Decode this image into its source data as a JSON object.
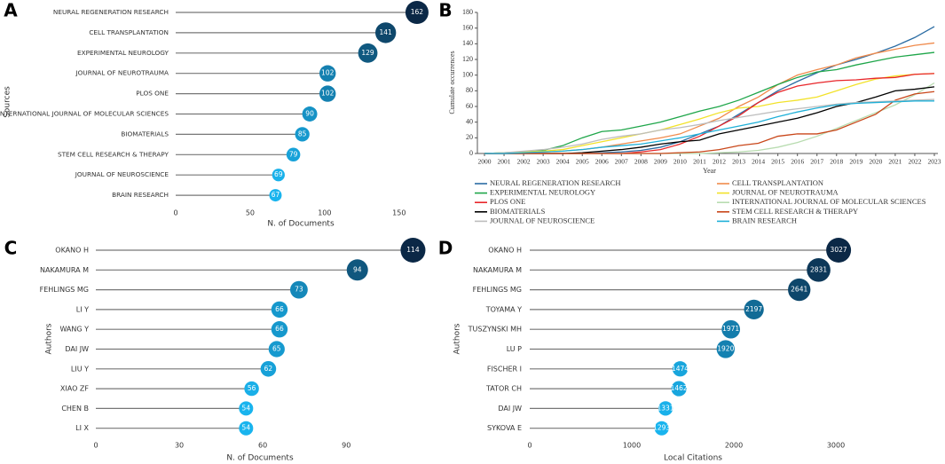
{
  "chart_data": [
    {
      "panel": "A",
      "type": "lollipop",
      "xlabel": "N. of Documents",
      "ylabel": "Sources",
      "categories": [
        "NEURAL REGENERATION RESEARCH",
        "CELL TRANSPLANTATION",
        "EXPERIMENTAL NEUROLOGY",
        "JOURNAL OF NEUROTRAUMA",
        "PLOS ONE",
        "INTERNATIONAL JOURNAL OF MOLECULAR SCIENCES",
        "BIOMATERIALS",
        "STEM CELL RESEARCH & THERAPY",
        "JOURNAL OF NEUROSCIENCE",
        "BRAIN RESEARCH"
      ],
      "values": [
        162,
        141,
        129,
        102,
        102,
        90,
        85,
        79,
        69,
        67
      ],
      "xlim": [
        0,
        168
      ],
      "xticks": [
        0,
        50,
        100,
        150
      ],
      "color_scale": [
        "#19b4ee",
        "#0b2846"
      ]
    },
    {
      "panel": "B",
      "type": "line",
      "xlabel": "Year",
      "ylabel": "Cumulate occurrences",
      "x": [
        2000,
        2001,
        2002,
        2003,
        2004,
        2005,
        2006,
        2007,
        2008,
        2009,
        2010,
        2011,
        2012,
        2013,
        2014,
        2015,
        2016,
        2017,
        2018,
        2019,
        2020,
        2021,
        2022,
        2023
      ],
      "xlim": [
        2000,
        2023
      ],
      "ylim": [
        0,
        180
      ],
      "yticks": [
        0,
        20,
        40,
        60,
        80,
        100,
        120,
        140,
        160,
        180
      ],
      "series": [
        {
          "name": "NEURAL REGENERATION RESEARCH",
          "color": "#2b6ca3",
          "values": [
            0,
            0,
            0,
            0,
            0,
            0,
            1,
            2,
            4,
            8,
            15,
            25,
            35,
            50,
            65,
            80,
            92,
            103,
            113,
            120,
            128,
            137,
            148,
            162
          ]
        },
        {
          "name": "CELL TRANSPLANTATION",
          "color": "#f08a4b",
          "values": [
            0,
            0,
            1,
            2,
            3,
            5,
            8,
            12,
            16,
            20,
            25,
            35,
            45,
            60,
            72,
            88,
            100,
            107,
            113,
            122,
            128,
            133,
            138,
            141
          ]
        },
        {
          "name": "EXPERIMENTAL NEUROLOGY",
          "color": "#1fa64a",
          "values": [
            0,
            1,
            2,
            4,
            10,
            20,
            28,
            30,
            35,
            40,
            47,
            54,
            60,
            68,
            78,
            88,
            97,
            104,
            107,
            113,
            118,
            123,
            126,
            129
          ]
        },
        {
          "name": "JOURNAL OF NEUROTRAUMA",
          "color": "#f2e22a",
          "values": [
            0,
            1,
            2,
            3,
            5,
            10,
            15,
            20,
            25,
            30,
            37,
            44,
            52,
            58,
            60,
            65,
            68,
            72,
            80,
            88,
            95,
            99,
            101,
            102
          ]
        },
        {
          "name": "PLOS ONE",
          "color": "#e8262a",
          "values": [
            0,
            0,
            0,
            0,
            0,
            0,
            0,
            0,
            2,
            5,
            12,
            22,
            35,
            48,
            65,
            78,
            86,
            90,
            93,
            94,
            96,
            97,
            101,
            102
          ]
        },
        {
          "name": "INTERNATIONAL JOURNAL OF MOLECULAR SCIENCES",
          "color": "#b8dcb0",
          "values": [
            0,
            0,
            0,
            0,
            0,
            0,
            0,
            0,
            0,
            0,
            0,
            0,
            1,
            2,
            4,
            8,
            14,
            22,
            32,
            42,
            52,
            62,
            75,
            90
          ]
        },
        {
          "name": "BIOMATERIALS",
          "color": "#000000",
          "values": [
            0,
            0,
            0,
            0,
            0,
            1,
            3,
            5,
            8,
            12,
            15,
            17,
            25,
            30,
            35,
            40,
            45,
            52,
            60,
            65,
            72,
            80,
            82,
            85
          ]
        },
        {
          "name": "STEM CELL RESEARCH & THERAPY",
          "color": "#c9471a",
          "values": [
            0,
            0,
            0,
            0,
            0,
            0,
            0,
            0,
            0,
            0,
            1,
            2,
            5,
            10,
            13,
            22,
            25,
            25,
            30,
            40,
            50,
            68,
            76,
            79
          ]
        },
        {
          "name": "JOURNAL OF NEUROSCIENCE",
          "color": "#bdbdbd",
          "values": [
            0,
            1,
            3,
            5,
            8,
            12,
            18,
            22,
            25,
            30,
            33,
            37,
            42,
            46,
            50,
            54,
            57,
            60,
            63,
            65,
            66,
            67,
            68,
            69
          ]
        },
        {
          "name": "BRAIN RESEARCH",
          "color": "#1fb0d8",
          "values": [
            0,
            0,
            1,
            2,
            3,
            5,
            8,
            10,
            12,
            16,
            20,
            25,
            30,
            35,
            40,
            47,
            53,
            58,
            62,
            64,
            65,
            66,
            67,
            67
          ]
        }
      ]
    },
    {
      "panel": "C",
      "type": "lollipop",
      "xlabel": "N. of Documents",
      "ylabel": "Authors",
      "categories": [
        "OKANO H",
        "NAKAMURA M",
        "FEHLINGS MG",
        "LI Y",
        "WANG Y",
        "DAI JW",
        "LIU Y",
        "XIAO ZF",
        "CHEN B",
        "LI X"
      ],
      "values": [
        114,
        94,
        73,
        66,
        66,
        65,
        62,
        56,
        54,
        54
      ],
      "xlim": [
        0,
        118
      ],
      "xticks": [
        0,
        30,
        60,
        90
      ],
      "color_scale": [
        "#19b4ee",
        "#0b2846"
      ]
    },
    {
      "panel": "D",
      "type": "lollipop",
      "xlabel": "Local Citations",
      "ylabel": "Authors",
      "categories": [
        "OKANO H",
        "NAKAMURA M",
        "FEHLINGS MG",
        "TOYAMA Y",
        "TUSZYNSKI MH",
        "LU P",
        "FISCHER I",
        "TATOR CH",
        "DAI JW",
        "SYKOVA E"
      ],
      "values": [
        3027,
        2831,
        2641,
        2197,
        1971,
        1920,
        1474,
        1462,
        1331,
        1293
      ],
      "xlim": [
        0,
        3200
      ],
      "xticks": [
        0,
        1000,
        2000,
        3000
      ],
      "color_scale": [
        "#19b4ee",
        "#0b2846"
      ]
    }
  ]
}
